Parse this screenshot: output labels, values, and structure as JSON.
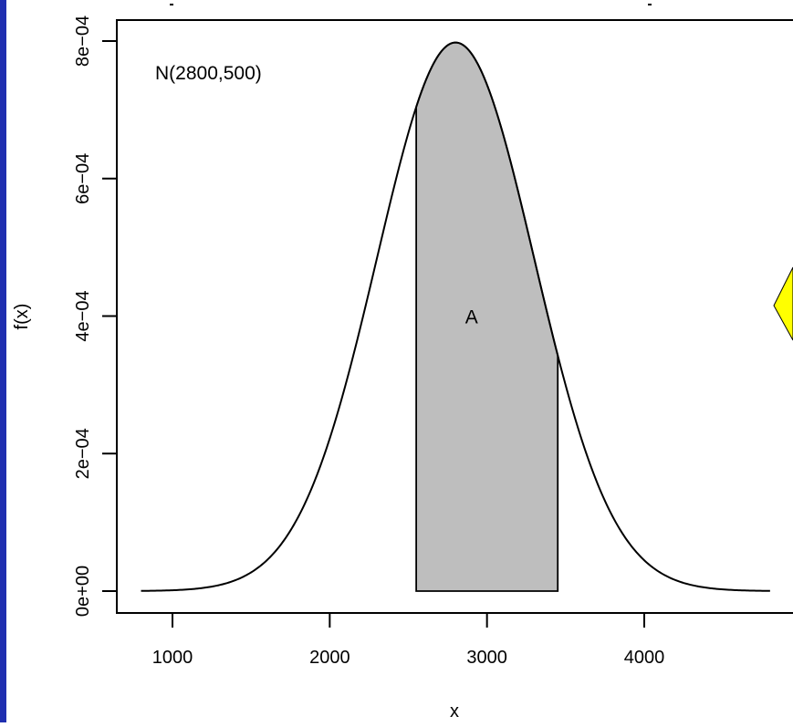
{
  "chart_data": {
    "type": "area",
    "title": "",
    "xlabel": "x",
    "ylabel": "f(x)",
    "xlim": [
      820,
      4780
    ],
    "ylim": [
      0,
      0.0008
    ],
    "x_ticks": [
      {
        "value": 1000,
        "label": "1000"
      },
      {
        "value": 2000,
        "label": "2000"
      },
      {
        "value": 3000,
        "label": "3000"
      },
      {
        "value": 4000,
        "label": "4000"
      }
    ],
    "y_ticks": [
      {
        "value": 0,
        "label": "0e+00"
      },
      {
        "value": 0.0002,
        "label": "2e−04"
      },
      {
        "value": 0.0004,
        "label": "4e−04"
      },
      {
        "value": 0.0006,
        "label": "6e−04"
      },
      {
        "value": 0.0008,
        "label": "8e−04"
      }
    ],
    "distribution": {
      "mean": 2800,
      "sd": 500,
      "label": "N(2800,500)"
    },
    "curve_range": [
      800,
      4800
    ],
    "shaded_region": {
      "from": 2550,
      "to": 3450,
      "label": "A",
      "fill": "#bebebe"
    },
    "grid": false,
    "legend": "none"
  },
  "colors": {
    "background": "#ffffff",
    "left_edge_bar": "#1f2fb0",
    "shade": "#bebebe",
    "curve": "#000000",
    "callout_fill": "#ffff00"
  }
}
